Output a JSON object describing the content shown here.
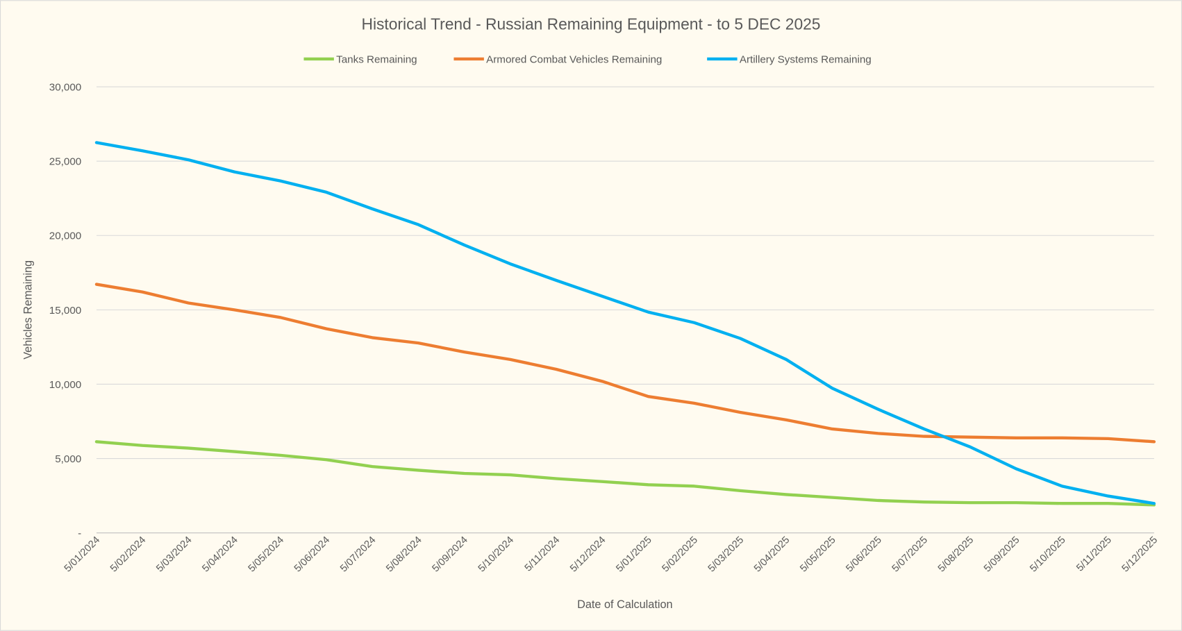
{
  "chart_data": {
    "type": "line",
    "title": "Historical Trend - Russian Remaining Equipment - to 5 DEC 2025",
    "xlabel": "Date of Calculation",
    "ylabel": "Vehicles Remaining",
    "ylim": [
      0,
      30000
    ],
    "y_ticks": [
      0,
      5000,
      10000,
      15000,
      20000,
      25000,
      30000
    ],
    "y_tick_labels": [
      "-",
      "5,000",
      "10,000",
      "15,000",
      "20,000",
      "25,000",
      "30,000"
    ],
    "grid": true,
    "legend_position": "top",
    "x": [
      "5/01/2024",
      "5/02/2024",
      "5/03/2024",
      "5/04/2024",
      "5/05/2024",
      "5/06/2024",
      "5/07/2024",
      "5/08/2024",
      "5/09/2024",
      "5/10/2024",
      "5/11/2024",
      "5/12/2024",
      "5/01/2025",
      "5/02/2025",
      "5/03/2025",
      "5/04/2025",
      "5/05/2025",
      "5/06/2025",
      "5/07/2025",
      "5/08/2025",
      "5/09/2025",
      "5/10/2025",
      "5/11/2025",
      "5/12/2025"
    ],
    "series": [
      {
        "name": "Tanks Remaining",
        "color": "#92d050",
        "values": [
          6130,
          5880,
          5700,
          5470,
          5220,
          4920,
          4460,
          4210,
          4000,
          3900,
          3650,
          3450,
          3240,
          3140,
          2840,
          2580,
          2380,
          2180,
          2080,
          2030,
          2030,
          1980,
          1980,
          1880
        ]
      },
      {
        "name": "Armored Combat Vehicles Remaining",
        "color": "#ed7d31",
        "values": [
          16720,
          16200,
          15460,
          15000,
          14490,
          13730,
          13130,
          12770,
          12160,
          11660,
          11000,
          10190,
          9170,
          8720,
          8110,
          7600,
          6990,
          6690,
          6490,
          6440,
          6390,
          6390,
          6340,
          6130
        ]
      },
      {
        "name": "Artillery Systems Remaining",
        "color": "#00b0f0",
        "values": [
          26250,
          25700,
          25090,
          24280,
          23670,
          22910,
          21790,
          20730,
          19360,
          18090,
          16980,
          15910,
          14850,
          14140,
          13080,
          11660,
          9730,
          8310,
          6990,
          5780,
          4310,
          3140,
          2480,
          1980
        ]
      }
    ]
  }
}
